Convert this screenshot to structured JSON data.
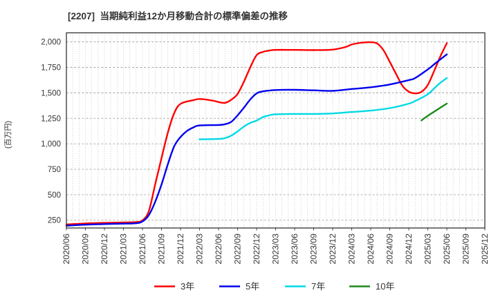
{
  "title": "[2207]  当期純利益12か月移動合計の標準偏差の推移",
  "y_axis": {
    "label": "(百万円)",
    "tick_labels": [
      "250",
      "500",
      "750",
      "1,000",
      "1,250",
      "1,500",
      "1,750",
      "2,000"
    ],
    "tick_values": [
      250,
      500,
      750,
      1000,
      1250,
      1500,
      1750,
      2000
    ]
  },
  "x_axis": {
    "tick_labels": [
      "2020/06",
      "2020/09",
      "2020/12",
      "2021/03",
      "2021/06",
      "2021/09",
      "2021/12",
      "2022/03",
      "2022/06",
      "2022/09",
      "2022/12",
      "2023/03",
      "2023/06",
      "2023/09",
      "2023/12",
      "2024/03",
      "2024/06",
      "2024/09",
      "2024/12",
      "2025/03",
      "2025/06",
      "2025/09",
      "2025/12"
    ]
  },
  "legend": {
    "position": "bottom",
    "items": [
      {
        "key": "3-year",
        "label": "3年",
        "color": "#ff0000"
      },
      {
        "key": "5-year",
        "label": "5年",
        "color": "#0000ee"
      },
      {
        "key": "7-year",
        "label": "7年",
        "color": "#00d9e6"
      },
      {
        "key": "10-year",
        "label": "10年",
        "color": "#1c8a1c"
      }
    ]
  },
  "chart_data": {
    "type": "line",
    "title": "[2207]  当期純利益12か月移動合計の標準偏差の推移",
    "xlabel": "",
    "ylabel": "(百万円)",
    "ylim": [
      155,
      2090
    ],
    "yticks": [
      250,
      500,
      750,
      1000,
      1250,
      1500,
      1750,
      2000
    ],
    "grid": "on",
    "x_unit": "months since 2020/06 (x = month index, quarterly ticks)",
    "categories": [
      "2020/06",
      "2020/09",
      "2020/12",
      "2021/03",
      "2021/06",
      "2021/09",
      "2021/12",
      "2022/03",
      "2022/06",
      "2022/09",
      "2022/12",
      "2023/03",
      "2023/06",
      "2023/09",
      "2023/12",
      "2024/03",
      "2024/06",
      "2024/09",
      "2024/12",
      "2025/03",
      "2025/06",
      "2025/09",
      "2025/12"
    ],
    "series": [
      {
        "name": "3年",
        "key": "3-year",
        "color": "#ff0000",
        "quarterly_values": [
          208,
          218,
          224,
          228,
          248,
          860,
          1392,
          1440,
          1410,
          1490,
          1870,
          1922,
          1922,
          1920,
          1925,
          1975,
          1997,
          1805,
          1512,
          1578,
          1988,
          null,
          null
        ],
        "points": [
          [
            0,
            208
          ],
          [
            3,
            218
          ],
          [
            6,
            224
          ],
          [
            9,
            228
          ],
          [
            11,
            232
          ],
          [
            12,
            248
          ],
          [
            13,
            340
          ],
          [
            14,
            600
          ],
          [
            15,
            860
          ],
          [
            16,
            1110
          ],
          [
            17,
            1300
          ],
          [
            18,
            1392
          ],
          [
            20,
            1428
          ],
          [
            21,
            1440
          ],
          [
            23,
            1425
          ],
          [
            24,
            1410
          ],
          [
            25,
            1402
          ],
          [
            26,
            1432
          ],
          [
            27,
            1490
          ],
          [
            28,
            1610
          ],
          [
            29,
            1750
          ],
          [
            30,
            1870
          ],
          [
            31,
            1902
          ],
          [
            32,
            1915
          ],
          [
            33,
            1922
          ],
          [
            36,
            1922
          ],
          [
            39,
            1920
          ],
          [
            42,
            1925
          ],
          [
            44,
            1950
          ],
          [
            45,
            1975
          ],
          [
            46,
            1988
          ],
          [
            47,
            1995
          ],
          [
            48,
            1997
          ],
          [
            49,
            1985
          ],
          [
            50,
            1920
          ],
          [
            51,
            1805
          ],
          [
            52,
            1685
          ],
          [
            53,
            1570
          ],
          [
            54,
            1512
          ],
          [
            55,
            1495
          ],
          [
            56,
            1510
          ],
          [
            57,
            1578
          ],
          [
            58,
            1715
          ],
          [
            59,
            1860
          ],
          [
            60,
            1988
          ]
        ]
      },
      {
        "name": "5年",
        "key": "5-year",
        "color": "#0000ee",
        "quarterly_values": [
          196,
          206,
          212,
          216,
          238,
          600,
          1067,
          1180,
          1185,
          1280,
          1495,
          1528,
          1530,
          1525,
          1520,
          1538,
          1555,
          1582,
          1625,
          1730,
          1878,
          null,
          null
        ],
        "points": [
          [
            0,
            196
          ],
          [
            3,
            206
          ],
          [
            6,
            212
          ],
          [
            9,
            216
          ],
          [
            11,
            220
          ],
          [
            12,
            238
          ],
          [
            13,
            300
          ],
          [
            14,
            430
          ],
          [
            15,
            600
          ],
          [
            16,
            800
          ],
          [
            17,
            975
          ],
          [
            18,
            1067
          ],
          [
            19,
            1125
          ],
          [
            20,
            1160
          ],
          [
            21,
            1180
          ],
          [
            24,
            1185
          ],
          [
            25,
            1192
          ],
          [
            26,
            1215
          ],
          [
            27,
            1280
          ],
          [
            28,
            1355
          ],
          [
            29,
            1435
          ],
          [
            30,
            1495
          ],
          [
            31,
            1515
          ],
          [
            33,
            1528
          ],
          [
            36,
            1530
          ],
          [
            39,
            1525
          ],
          [
            42,
            1520
          ],
          [
            45,
            1538
          ],
          [
            48,
            1555
          ],
          [
            51,
            1582
          ],
          [
            54,
            1625
          ],
          [
            55,
            1645
          ],
          [
            57,
            1730
          ],
          [
            58,
            1780
          ],
          [
            59,
            1830
          ],
          [
            60,
            1878
          ]
        ]
      },
      {
        "name": "7年",
        "key": "7-year",
        "color": "#00d9e6",
        "quarterly_values": [
          null,
          null,
          null,
          null,
          null,
          null,
          null,
          1044,
          1048,
          1122,
          1228,
          1290,
          1293,
          1293,
          1298,
          1312,
          1326,
          1350,
          1394,
          1486,
          1645,
          null,
          null
        ],
        "points": [
          [
            21,
            1044
          ],
          [
            24,
            1048
          ],
          [
            25,
            1056
          ],
          [
            26,
            1080
          ],
          [
            27,
            1122
          ],
          [
            28,
            1170
          ],
          [
            29,
            1205
          ],
          [
            30,
            1228
          ],
          [
            31,
            1262
          ],
          [
            32,
            1280
          ],
          [
            33,
            1290
          ],
          [
            36,
            1293
          ],
          [
            39,
            1293
          ],
          [
            42,
            1298
          ],
          [
            45,
            1312
          ],
          [
            48,
            1326
          ],
          [
            51,
            1350
          ],
          [
            54,
            1394
          ],
          [
            55,
            1420
          ],
          [
            57,
            1486
          ],
          [
            58,
            1544
          ],
          [
            59,
            1600
          ],
          [
            60,
            1645
          ]
        ],
        "note": "series starts 2022/03"
      },
      {
        "name": "10年",
        "key": "10-year",
        "color": "#1c8a1c",
        "quarterly_values": [
          null,
          null,
          null,
          null,
          null,
          null,
          null,
          null,
          null,
          null,
          null,
          null,
          null,
          null,
          null,
          null,
          null,
          null,
          null,
          1275,
          1395,
          null,
          null
        ],
        "points": [
          [
            56,
            1230
          ],
          [
            57,
            1275
          ],
          [
            60,
            1395
          ]
        ],
        "note": "series starts 2025/02"
      }
    ],
    "legend_position": "bottom"
  }
}
